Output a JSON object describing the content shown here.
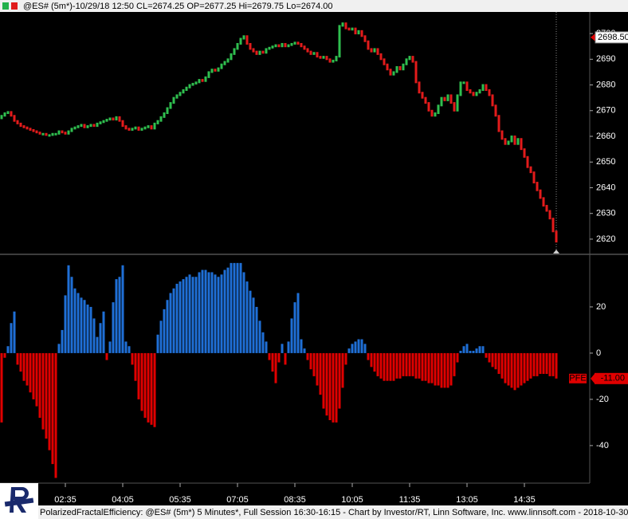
{
  "header": "@ES# (5m*)-10/29/18 12:50 CL=2674.25 OP=2677.25 Hi=2679.75 Lo=2674.00",
  "footer": "PolarizedFractalEfficiency: @ES# (5m*) 5 Minutes*, Full Session 16:30-16:15 - Chart by Investor/RT, Linn Software, Inc. www.linnsoft.com - 2018-10-30",
  "chart_data": [
    {
      "type": "candlestick",
      "up_color": "#2fbf4f",
      "down_color": "#e31b1b",
      "ylim": [
        2614.4,
        2708.4
      ],
      "yticks": [
        2620,
        2630,
        2640,
        2650,
        2660,
        2670,
        2680,
        2690,
        2700
      ],
      "marker": {
        "value": 2698.5,
        "label": "2698.50"
      },
      "open": [
        2667,
        2668,
        2669,
        2669.5,
        2668,
        2666,
        2665,
        2664,
        2663.5,
        2663,
        2662.5,
        2662,
        2661.5,
        2661,
        2661,
        2660.5,
        2660.5,
        2661,
        2661,
        2662,
        2661.5,
        2661,
        2662,
        2663,
        2663.5,
        2664,
        2664.5,
        2663.5,
        2664,
        2664.5,
        2664,
        2665,
        2665.5,
        2666,
        2666.5,
        2667,
        2666.5,
        2667.5,
        2666,
        2664,
        2663,
        2662.5,
        2663,
        2663.5,
        2662.5,
        2663,
        2663.5,
        2664,
        2663,
        2665,
        2666,
        2667.5,
        2669,
        2671,
        2673,
        2675,
        2676,
        2677,
        2678,
        2679,
        2680,
        2680.5,
        2681,
        2682,
        2681.5,
        2683,
        2685,
        2686,
        2685.5,
        2686.5,
        2688,
        2689,
        2690,
        2692,
        2694,
        2696,
        2698,
        2699,
        2696,
        2694,
        2693,
        2692,
        2693,
        2692.5,
        2694,
        2694.5,
        2695,
        2695.5,
        2695,
        2696,
        2695,
        2695.5,
        2696,
        2696.5,
        2696,
        2695,
        2694,
        2693,
        2692,
        2692.5,
        2691,
        2690.5,
        2691,
        2690,
        2689,
        2689.5,
        2691,
        2703,
        2704,
        2702,
        2701.5,
        2702,
        2700,
        2701,
        2699,
        2697,
        2694,
        2693,
        2694,
        2692,
        2690,
        2688,
        2686,
        2684,
        2685,
        2687,
        2686,
        2688,
        2690,
        2691,
        2689,
        2681,
        2677,
        2675,
        2673,
        2670,
        2668,
        2669,
        2672,
        2675,
        2674,
        2676,
        2673,
        2670,
        2676,
        2681,
        2681,
        2678,
        2677,
        2676,
        2677,
        2678,
        2680,
        2678,
        2676,
        2672,
        2668,
        2662,
        2659,
        2657,
        2658,
        2660,
        2657,
        2659,
        2655,
        2652,
        2648,
        2646,
        2642,
        2639,
        2636,
        2633,
        2631,
        2628,
        2623
      ],
      "close": [
        2668,
        2669,
        2669.5,
        2668,
        2666,
        2665,
        2664,
        2663.5,
        2663,
        2662.5,
        2662,
        2661.5,
        2661,
        2661,
        2660.5,
        2660.5,
        2661,
        2661,
        2662,
        2661.5,
        2661,
        2662,
        2663,
        2663.5,
        2664,
        2664.5,
        2663.5,
        2664,
        2664.5,
        2664,
        2665,
        2665.5,
        2666,
        2666.5,
        2667,
        2666.5,
        2667.5,
        2666,
        2664,
        2663,
        2662.5,
        2663,
        2663.5,
        2662.5,
        2663,
        2663.5,
        2664,
        2663,
        2665,
        2666,
        2667.5,
        2669,
        2671,
        2673,
        2675,
        2676,
        2677,
        2678,
        2679,
        2680,
        2680.5,
        2681,
        2682,
        2681.5,
        2683,
        2685,
        2686,
        2685.5,
        2686.5,
        2688,
        2689,
        2690,
        2692,
        2694,
        2696,
        2698,
        2699,
        2696,
        2694,
        2693,
        2692,
        2693,
        2692.5,
        2694,
        2694.5,
        2695,
        2695.5,
        2695,
        2696,
        2695,
        2695.5,
        2696,
        2696.5,
        2696,
        2695,
        2694,
        2693,
        2692,
        2692.5,
        2691,
        2690.5,
        2691,
        2690,
        2689,
        2689.5,
        2691,
        2703,
        2704,
        2702,
        2701.5,
        2702,
        2700,
        2701,
        2699,
        2697,
        2694,
        2693,
        2694,
        2692,
        2690,
        2688,
        2686,
        2684,
        2685,
        2687,
        2686,
        2688,
        2690,
        2691,
        2689,
        2681,
        2677,
        2675,
        2673,
        2670,
        2668,
        2669,
        2672,
        2675,
        2674,
        2676,
        2673,
        2670,
        2676,
        2681,
        2681,
        2678,
        2677,
        2676,
        2677,
        2678,
        2680,
        2678,
        2676,
        2672,
        2668,
        2662,
        2659,
        2657,
        2658,
        2660,
        2657,
        2659,
        2655,
        2652,
        2648,
        2646,
        2642,
        2639,
        2636,
        2633,
        2631,
        2628,
        2623,
        2619
      ]
    },
    {
      "type": "bar",
      "positive_color": "#1f6fd6",
      "negative_color": "#e00000",
      "ylim": [
        -55.9,
        42.4
      ],
      "yticks": [
        -40,
        -20,
        0,
        20
      ],
      "marker": {
        "name": "PFE",
        "value": -11,
        "label": "-11.00"
      },
      "categories": [
        null,
        null,
        null,
        null,
        null,
        null,
        null,
        null,
        null,
        null,
        null,
        null,
        null,
        null,
        null,
        null,
        null,
        null,
        null,
        null,
        "02:35",
        null,
        null,
        null,
        null,
        null,
        null,
        null,
        null,
        null,
        null,
        null,
        null,
        null,
        null,
        null,
        null,
        null,
        "04:05",
        null,
        null,
        null,
        null,
        null,
        null,
        null,
        null,
        null,
        null,
        null,
        null,
        null,
        null,
        null,
        null,
        null,
        "05:35",
        null,
        null,
        null,
        null,
        null,
        null,
        null,
        null,
        null,
        null,
        null,
        null,
        null,
        null,
        null,
        null,
        null,
        "07:05",
        null,
        null,
        null,
        null,
        null,
        null,
        null,
        null,
        null,
        null,
        null,
        null,
        null,
        null,
        null,
        null,
        null,
        "08:35",
        null,
        null,
        null,
        null,
        null,
        null,
        null,
        null,
        null,
        null,
        null,
        null,
        null,
        null,
        null,
        null,
        null,
        "10:05",
        null,
        null,
        null,
        null,
        null,
        null,
        null,
        null,
        null,
        null,
        null,
        null,
        null,
        null,
        null,
        null,
        null,
        "11:35",
        null,
        null,
        null,
        null,
        null,
        null,
        null,
        null,
        null,
        null,
        null,
        null,
        null,
        null,
        null,
        null,
        null,
        "13:05",
        null,
        null,
        null,
        null,
        null,
        null,
        null,
        null,
        null,
        null,
        null,
        null,
        null,
        null,
        null,
        null,
        null,
        "14:35",
        null,
        null,
        null,
        null,
        null,
        null,
        null,
        null,
        null,
        null
      ],
      "values": [
        -30,
        -2,
        3,
        13,
        18,
        -5,
        -8,
        -12,
        -14,
        -17,
        -20,
        -23,
        -28,
        -33,
        -37,
        -42,
        -48,
        -54,
        4,
        10,
        25,
        38,
        33,
        28,
        26,
        24,
        23,
        21,
        20,
        15,
        7,
        13,
        18,
        -3,
        5,
        22,
        32,
        33,
        38,
        5,
        3,
        -5,
        -12,
        -20,
        -25,
        -28,
        -30,
        -31,
        -32,
        8,
        14,
        19,
        23,
        26,
        28,
        30,
        31,
        32,
        33,
        34,
        33,
        33,
        35,
        36,
        36,
        35,
        35,
        34,
        33,
        34,
        36,
        37,
        39,
        39,
        39,
        39,
        35,
        31,
        27,
        24,
        20,
        14,
        9,
        5,
        -3,
        -8,
        -13,
        -4,
        4,
        -5,
        5,
        15,
        22,
        26,
        6,
        2,
        -3,
        -7,
        -10,
        -14,
        -18,
        -24,
        -27,
        -29,
        -30,
        -30,
        -24,
        -15,
        -5,
        2,
        4,
        5,
        6,
        6,
        4,
        -3,
        -6,
        -8,
        -10,
        -11,
        -12,
        -12,
        -12,
        -12,
        -11,
        -11,
        -10,
        -10,
        -10,
        -10,
        -11,
        -11,
        -12,
        -12,
        -13,
        -13,
        -14,
        -14,
        -15,
        -15,
        -15,
        -14,
        -10,
        -4,
        1,
        3,
        4,
        1,
        1,
        2,
        3,
        3,
        -2,
        -4,
        -6,
        -7,
        -9,
        -11,
        -13,
        -14,
        -15,
        -16,
        -15,
        -14,
        -13,
        -12,
        -11,
        -10,
        -10,
        -9,
        -9,
        -9,
        -10,
        -10,
        -11
      ]
    }
  ]
}
